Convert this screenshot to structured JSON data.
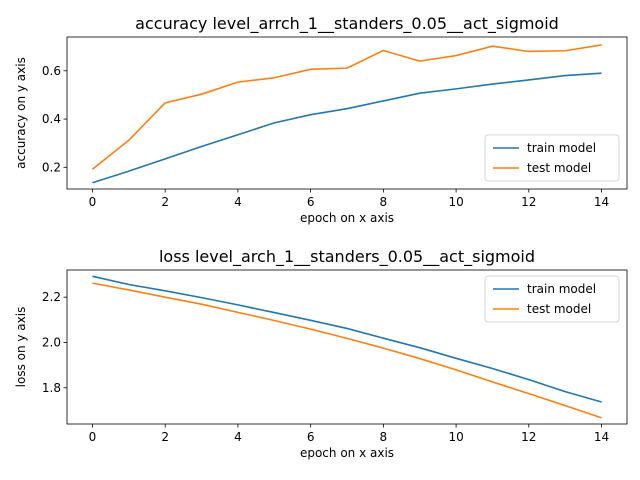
{
  "chart_data": [
    {
      "type": "line",
      "title": "accuracy level_arrch_1__standers_0.05__act_sigmoid",
      "xlabel": "epoch on x axis",
      "ylabel": "accuracy on y axis",
      "xlim": [
        -0.7,
        14.7
      ],
      "ylim": [
        0.11,
        0.74
      ],
      "xticks": [
        0,
        2,
        4,
        6,
        8,
        10,
        12,
        14
      ],
      "yticks": [
        0.2,
        0.4,
        0.6
      ],
      "ytick_labels": [
        "0.2",
        "0.4",
        "0.6"
      ],
      "legend_position": "lower-right",
      "x": [
        0,
        1,
        2,
        3,
        4,
        5,
        6,
        7,
        8,
        9,
        10,
        11,
        12,
        13,
        14
      ],
      "series": [
        {
          "name": "train model",
          "color": "#1f77b4",
          "values": [
            0.136,
            0.184,
            0.235,
            0.286,
            0.335,
            0.384,
            0.418,
            0.443,
            0.475,
            0.507,
            0.525,
            0.545,
            0.562,
            0.58,
            0.59
          ]
        },
        {
          "name": "test model",
          "color": "#ff7f0e",
          "values": [
            0.192,
            0.312,
            0.467,
            0.503,
            0.553,
            0.571,
            0.606,
            0.611,
            0.684,
            0.64,
            0.663,
            0.702,
            0.68,
            0.683,
            0.707
          ]
        }
      ]
    },
    {
      "type": "line",
      "title": "loss level_arch_1__standers_0.05__act_sigmoid",
      "xlabel": "epoch on x axis",
      "ylabel": "loss on y axis",
      "xlim": [
        -0.7,
        14.7
      ],
      "ylim": [
        1.64,
        2.32
      ],
      "xticks": [
        0,
        2,
        4,
        6,
        8,
        10,
        12,
        14
      ],
      "yticks": [
        1.8,
        2.0,
        2.2
      ],
      "ytick_labels": [
        "1.8",
        "2.0",
        "2.2"
      ],
      "legend_position": "top-right",
      "x": [
        0,
        1,
        2,
        3,
        4,
        5,
        6,
        7,
        8,
        9,
        10,
        11,
        12,
        13,
        14
      ],
      "series": [
        {
          "name": "train model",
          "color": "#1f77b4",
          "values": [
            2.292,
            2.256,
            2.228,
            2.198,
            2.166,
            2.132,
            2.098,
            2.062,
            2.019,
            1.977,
            1.93,
            1.885,
            1.836,
            1.783,
            1.737
          ]
        },
        {
          "name": "test model",
          "color": "#ff7f0e",
          "values": [
            2.262,
            2.232,
            2.2,
            2.169,
            2.133,
            2.097,
            2.059,
            2.018,
            1.975,
            1.929,
            1.879,
            1.826,
            1.774,
            1.721,
            1.667
          ]
        }
      ]
    }
  ]
}
